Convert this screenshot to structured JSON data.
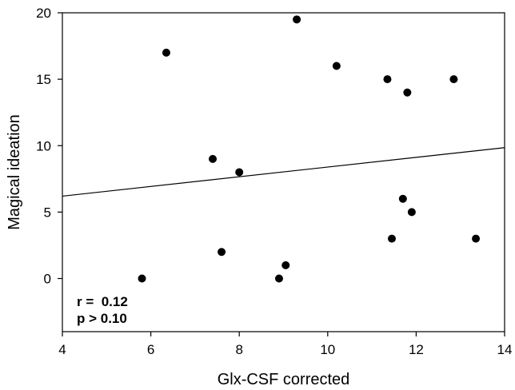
{
  "chart_data": {
    "type": "scatter",
    "xlabel": "Glx-CSF corrected",
    "ylabel": "Magical ideation",
    "xlim": [
      4,
      14
    ],
    "ylim": [
      -4,
      20
    ],
    "xticks": [
      4,
      6,
      8,
      10,
      12,
      14
    ],
    "yticks": [
      0,
      5,
      10,
      15,
      20
    ],
    "grid": false,
    "points": [
      {
        "x": 5.8,
        "y": 0
      },
      {
        "x": 6.35,
        "y": 17
      },
      {
        "x": 7.4,
        "y": 9
      },
      {
        "x": 7.6,
        "y": 2
      },
      {
        "x": 8.0,
        "y": 8
      },
      {
        "x": 8.9,
        "y": 0
      },
      {
        "x": 9.05,
        "y": 1
      },
      {
        "x": 9.3,
        "y": 19.5
      },
      {
        "x": 10.2,
        "y": 16
      },
      {
        "x": 11.35,
        "y": 15
      },
      {
        "x": 11.45,
        "y": 3
      },
      {
        "x": 11.7,
        "y": 6
      },
      {
        "x": 11.8,
        "y": 14
      },
      {
        "x": 11.9,
        "y": 5
      },
      {
        "x": 12.85,
        "y": 15
      },
      {
        "x": 13.35,
        "y": 3
      }
    ],
    "regression_line": {
      "x": [
        4,
        14
      ],
      "y": [
        6.2,
        9.85
      ]
    },
    "annotations": {
      "r": "r =  0.12",
      "p": "p > 0.10"
    },
    "colors": {
      "points": "#000000",
      "line": "#000000",
      "axes": "#000000"
    }
  }
}
